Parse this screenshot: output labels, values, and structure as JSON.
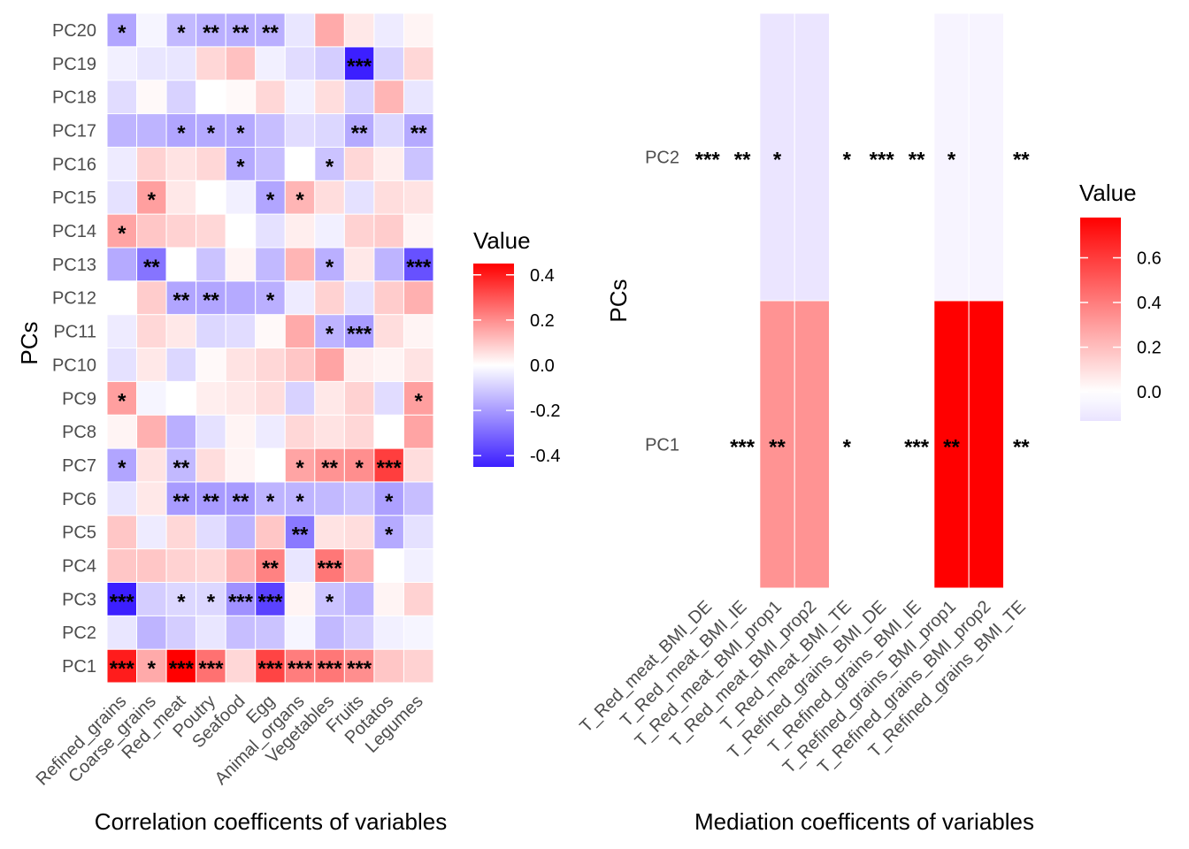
{
  "chart_data": [
    {
      "type": "heatmap",
      "xlabel": "Correlation coefficents of variables",
      "ylabel": "PCs",
      "x_categories": [
        "Refined_grains",
        "Coarse_grains",
        "Red_meat",
        "Poutry",
        "Seafood",
        "Egg",
        "Animal_organs",
        "Vegetables",
        "Fruits",
        "Potatos",
        "Legumes"
      ],
      "y_categories": [
        "PC1",
        "PC2",
        "PC3",
        "PC4",
        "PC5",
        "PC6",
        "PC7",
        "PC8",
        "PC9",
        "PC10",
        "PC11",
        "PC12",
        "PC13",
        "PC14",
        "PC15",
        "PC16",
        "PC17",
        "PC18",
        "PC19",
        "PC20"
      ],
      "values": [
        [
          0.4,
          0.15,
          0.45,
          0.25,
          0.07,
          0.33,
          0.23,
          0.24,
          0.2,
          0.1,
          0.08
        ],
        [
          -0.05,
          -0.15,
          -0.1,
          -0.05,
          -0.13,
          -0.12,
          -0.02,
          -0.14,
          -0.1,
          -0.03,
          -0.02
        ],
        [
          -0.45,
          -0.1,
          -0.08,
          -0.08,
          -0.22,
          -0.38,
          0.02,
          -0.12,
          -0.15,
          0.02,
          0.08
        ],
        [
          0.1,
          0.1,
          0.08,
          0.07,
          0.13,
          0.22,
          -0.05,
          0.24,
          0.14,
          0.0,
          -0.03
        ],
        [
          0.1,
          -0.04,
          0.07,
          -0.07,
          -0.15,
          0.1,
          -0.27,
          0.05,
          0.06,
          -0.17,
          -0.06
        ],
        [
          -0.05,
          0.04,
          -0.2,
          -0.2,
          -0.2,
          -0.15,
          -0.15,
          -0.14,
          -0.12,
          -0.19,
          -0.13
        ],
        [
          -0.18,
          0.05,
          -0.14,
          0.06,
          0.02,
          0.0,
          0.16,
          0.19,
          0.2,
          0.34,
          0.06
        ],
        [
          0.02,
          0.14,
          -0.16,
          -0.06,
          0.02,
          -0.04,
          0.07,
          0.05,
          0.07,
          0.0,
          0.16
        ],
        [
          0.17,
          -0.02,
          0.0,
          0.03,
          0.04,
          0.06,
          -0.09,
          0.04,
          0.08,
          -0.07,
          0.17
        ],
        [
          -0.06,
          0.04,
          -0.08,
          0.01,
          0.05,
          0.07,
          0.1,
          0.16,
          0.03,
          0.02,
          0.05
        ],
        [
          -0.04,
          0.07,
          0.04,
          -0.08,
          -0.07,
          0.01,
          0.15,
          -0.15,
          -0.2,
          0.06,
          0.02
        ],
        [
          0.0,
          0.09,
          -0.18,
          -0.18,
          -0.17,
          -0.16,
          -0.04,
          0.08,
          -0.06,
          0.09,
          0.14
        ],
        [
          -0.17,
          -0.28,
          0.0,
          -0.12,
          0.02,
          -0.14,
          0.13,
          -0.16,
          0.04,
          -0.15,
          -0.35
        ],
        [
          0.16,
          0.1,
          0.08,
          0.07,
          0.0,
          -0.06,
          0.03,
          -0.03,
          0.08,
          0.09,
          0.02
        ],
        [
          -0.06,
          0.17,
          0.04,
          0.0,
          -0.03,
          -0.18,
          0.13,
          0.06,
          -0.06,
          0.06,
          0.05
        ],
        [
          -0.04,
          0.08,
          0.05,
          0.07,
          -0.17,
          -0.13,
          0.0,
          -0.12,
          0.07,
          0.03,
          -0.12
        ],
        [
          -0.15,
          -0.15,
          -0.18,
          -0.17,
          -0.17,
          -0.13,
          -0.07,
          -0.08,
          -0.17,
          -0.08,
          -0.17
        ],
        [
          -0.07,
          0.01,
          -0.09,
          0.0,
          0.01,
          0.07,
          -0.03,
          0.06,
          -0.09,
          0.13,
          -0.05
        ],
        [
          -0.03,
          -0.05,
          -0.05,
          0.07,
          0.11,
          -0.03,
          -0.07,
          -0.1,
          -0.55,
          -0.09,
          0.07
        ],
        [
          -0.18,
          -0.02,
          -0.14,
          -0.16,
          -0.16,
          -0.16,
          -0.05,
          0.15,
          0.04,
          -0.04,
          0.02
        ]
      ],
      "stars": [
        [
          "***",
          "*",
          "***",
          "***",
          "",
          "***",
          "***",
          "***",
          "***",
          "",
          ""
        ],
        [
          "",
          "",
          "",
          "",
          "",
          "",
          "",
          "",
          "",
          "",
          ""
        ],
        [
          "***",
          "",
          "*",
          "*",
          "***",
          "***",
          "",
          "*",
          "",
          "",
          ""
        ],
        [
          "",
          "",
          "",
          "",
          "",
          "**",
          "",
          "***",
          "",
          "",
          ""
        ],
        [
          "",
          "",
          "",
          "",
          "",
          "",
          "**",
          "",
          "",
          "*",
          ""
        ],
        [
          "",
          "",
          "**",
          "**",
          "**",
          "*",
          "*",
          "",
          "",
          "*",
          ""
        ],
        [
          "*",
          "",
          "**",
          "",
          "",
          "",
          "*",
          "**",
          "*",
          "***",
          ""
        ],
        [
          "",
          "",
          "",
          "",
          "",
          "",
          "",
          "",
          "",
          "",
          ""
        ],
        [
          "*",
          "",
          "",
          "",
          "",
          "",
          "",
          "",
          "",
          "",
          "*"
        ],
        [
          "",
          "",
          "",
          "",
          "",
          "",
          "",
          "",
          "",
          "",
          ""
        ],
        [
          "",
          "",
          "",
          "",
          "",
          "",
          "",
          "*",
          "***",
          "",
          ""
        ],
        [
          "",
          "",
          "**",
          "**",
          "",
          "*",
          "",
          "",
          "",
          "",
          ""
        ],
        [
          "",
          "**",
          "",
          "",
          "",
          "",
          "",
          "*",
          "",
          "",
          "***"
        ],
        [
          "*",
          "",
          "",
          "",
          "",
          "",
          "",
          "",
          "",
          "",
          ""
        ],
        [
          "",
          "*",
          "",
          "",
          "",
          "*",
          "*",
          "",
          "",
          "",
          ""
        ],
        [
          "",
          "",
          "",
          "",
          "*",
          "",
          "",
          "*",
          "",
          "",
          ""
        ],
        [
          "",
          "",
          "*",
          "*",
          "*",
          "",
          "",
          "",
          "**",
          "",
          "**"
        ],
        [
          "",
          "",
          "",
          "",
          "",
          "",
          "",
          "",
          "",
          "",
          ""
        ],
        [
          "",
          "",
          "",
          "",
          "",
          "",
          "",
          "",
          "***",
          "",
          ""
        ],
        [
          "*",
          "",
          "*",
          "**",
          "**",
          "**",
          "",
          "",
          "",
          "",
          ""
        ]
      ],
      "color_scale": {
        "low": "#3c1fff",
        "mid": "#ffffff",
        "high": "#ff0000",
        "min": -0.45,
        "max": 0.45
      },
      "legend": {
        "title": "Value",
        "labels": [
          "0.4",
          "0.2",
          "0.0",
          "-0.2",
          "-0.4"
        ],
        "values": [
          0.4,
          0.2,
          0.0,
          -0.2,
          -0.4
        ],
        "placement": "right"
      }
    },
    {
      "type": "heatmap",
      "xlabel": "Mediation coefficents of variables",
      "ylabel": "PCs",
      "x_categories": [
        "T_Red_meat_BMI_DE",
        "T_Red_meat_BMI_IE",
        "T_Red_meat_BMI_prop1",
        "T_Red_meat_BMI_prop2",
        "T_Red_meat_BMI_TE",
        "T_Refined_grains_BMI_DE",
        "T_Refined_grains_BMI_IE",
        "T_Refined_grains_BMI_prop1",
        "T_Refined_grains_BMI_prop2",
        "T_Refined_grains_BMI_TE"
      ],
      "y_categories": [
        "PC1",
        "PC2"
      ],
      "values": [
        [
          0.0,
          0.0,
          0.33,
          0.33,
          0.0,
          0.0,
          0.0,
          0.78,
          0.78,
          0.0
        ],
        [
          0.0,
          0.0,
          -0.12,
          -0.12,
          0.0,
          0.0,
          0.0,
          -0.05,
          -0.05,
          0.0
        ]
      ],
      "stars": [
        [
          "",
          "***",
          "**",
          "",
          "*",
          "",
          "***",
          "**",
          "",
          "**"
        ],
        [
          "***",
          "**",
          "*",
          "",
          "*",
          "***",
          "**",
          "*",
          "",
          "**"
        ]
      ],
      "color_scale": {
        "low": "#e9e3ff",
        "mid": "#ffffff",
        "high": "#ff0000",
        "min": -0.13,
        "max": 0.78
      },
      "legend": {
        "title": "Value",
        "labels": [
          "0.6",
          "0.4",
          "0.2",
          "0.0"
        ],
        "values": [
          0.6,
          0.4,
          0.2,
          0.0
        ],
        "placement": "right"
      }
    }
  ]
}
